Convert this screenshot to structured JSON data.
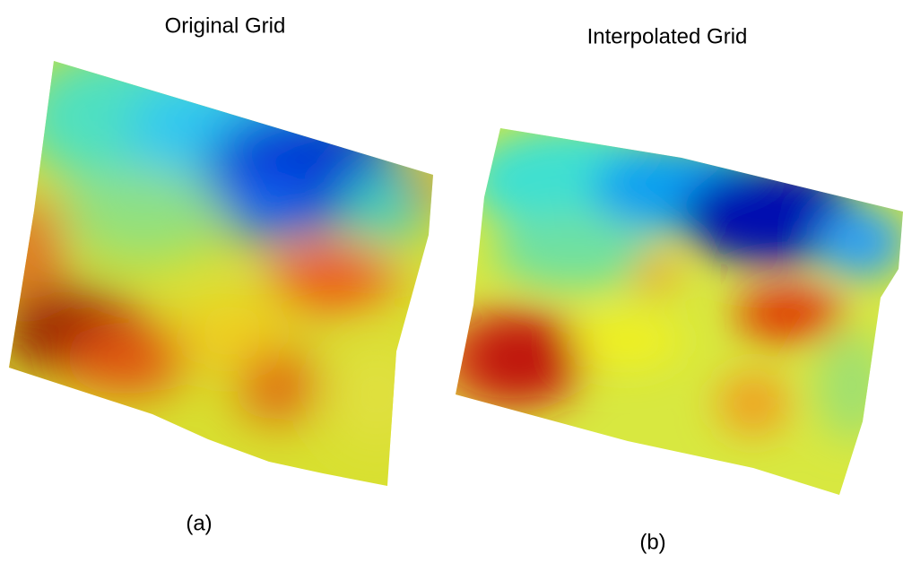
{
  "panels": [
    {
      "title": "Original Grid",
      "label": "(a)"
    },
    {
      "title": "Interpolated Grid",
      "label": "(b)"
    }
  ]
}
